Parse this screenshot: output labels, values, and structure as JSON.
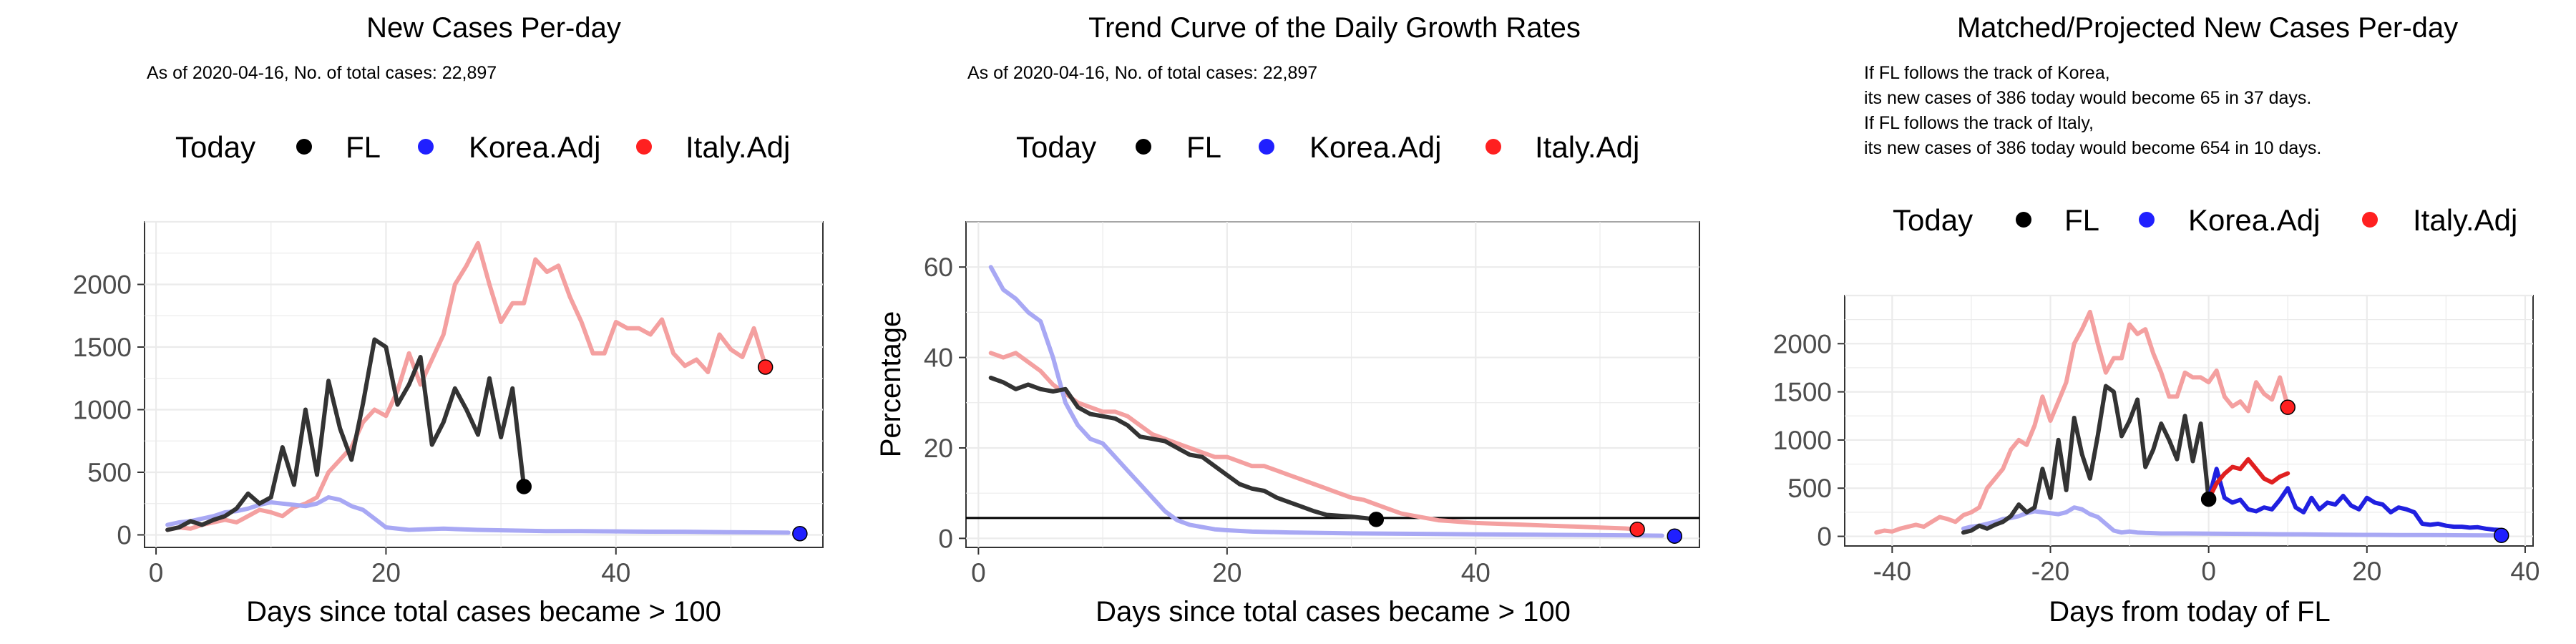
{
  "chart_data": [
    {
      "type": "line",
      "title": "New Cases Per-day",
      "subtitle": "As of 2020-04-16, No. of total cases: 22,897",
      "xlabel": "Days since total cases became > 100",
      "ylabel": "",
      "xlim": [
        -1,
        58
      ],
      "ylim": [
        -100,
        2500
      ],
      "xticks": [
        0,
        20,
        40
      ],
      "yticks": [
        0,
        500,
        1000,
        1500,
        2000
      ],
      "grid": true,
      "legend": {
        "position": "top",
        "title": "Today",
        "entries": [
          "FL",
          "Korea.Adj",
          "Italy.Adj"
        ]
      },
      "series": [
        {
          "name": "Italy.Adj",
          "color": "#f4a0a0",
          "x": [
            1,
            2,
            3,
            4,
            5,
            6,
            7,
            8,
            9,
            10,
            11,
            12,
            13,
            14,
            15,
            16,
            17,
            18,
            19,
            20,
            21,
            22,
            23,
            24,
            25,
            26,
            27,
            28,
            29,
            30,
            31,
            32,
            33,
            34,
            35,
            36,
            37,
            38,
            39,
            40,
            41,
            42,
            43,
            44,
            45,
            46,
            47,
            48,
            49,
            50,
            51,
            52,
            53
          ],
          "y": [
            40,
            60,
            50,
            80,
            100,
            120,
            100,
            150,
            200,
            180,
            150,
            220,
            250,
            300,
            500,
            600,
            700,
            900,
            1000,
            950,
            1150,
            1450,
            1200,
            1400,
            1600,
            2000,
            2150,
            2330,
            2000,
            1700,
            1850,
            1850,
            2200,
            2100,
            2150,
            1900,
            1700,
            1450,
            1450,
            1700,
            1650,
            1650,
            1600,
            1720,
            1450,
            1350,
            1400,
            1300,
            1600,
            1480,
            1420,
            1650,
            1350
          ]
        },
        {
          "name": "Korea.Adj",
          "color": "#a8a8f4",
          "x": [
            1,
            2,
            3,
            4,
            5,
            6,
            7,
            8,
            9,
            10,
            11,
            12,
            13,
            14,
            15,
            16,
            17,
            18,
            19,
            20,
            22,
            25,
            28,
            31,
            34,
            37,
            40,
            43,
            46,
            49,
            52,
            55
          ],
          "y": [
            80,
            100,
            110,
            130,
            150,
            180,
            190,
            210,
            240,
            260,
            250,
            240,
            230,
            250,
            300,
            280,
            230,
            200,
            130,
            60,
            40,
            50,
            40,
            35,
            30,
            30,
            28,
            26,
            25,
            22,
            20,
            18
          ]
        },
        {
          "name": "FL",
          "color": "#333333",
          "x": [
            1,
            2,
            3,
            4,
            5,
            6,
            7,
            8,
            9,
            10,
            11,
            12,
            13,
            14,
            15,
            16,
            17,
            18,
            19,
            20,
            21,
            22,
            23,
            24,
            25,
            26,
            27,
            28,
            29,
            30,
            31,
            32
          ],
          "y": [
            40,
            60,
            110,
            80,
            120,
            150,
            210,
            330,
            250,
            300,
            700,
            400,
            1000,
            480,
            1230,
            850,
            600,
            1050,
            1560,
            1500,
            1040,
            1200,
            1420,
            720,
            900,
            1170,
            1000,
            800,
            1250,
            780,
            1170,
            386
          ]
        }
      ],
      "today_points": [
        {
          "name": "FL",
          "x": 32,
          "y": 386,
          "color": "#000000"
        },
        {
          "name": "Italy.Adj",
          "x": 53,
          "y": 1340,
          "color": "#ff2020"
        },
        {
          "name": "Korea.Adj",
          "x": 56,
          "y": 10,
          "color": "#2020ff"
        }
      ]
    },
    {
      "type": "line",
      "title": "Trend Curve of the Daily Growth Rates",
      "subtitle": "As of 2020-04-16, No. of total cases: 22,897",
      "xlabel": "Days since total cases became > 100",
      "ylabel": "Percentage",
      "xlim": [
        -1,
        58
      ],
      "ylim": [
        -2,
        70
      ],
      "xticks": [
        0,
        20,
        40
      ],
      "yticks": [
        0,
        20,
        40,
        60
      ],
      "grid": true,
      "hline": 4.5,
      "legend": {
        "position": "top",
        "title": "Today",
        "entries": [
          "FL",
          "Korea.Adj",
          "Italy.Adj"
        ]
      },
      "series": [
        {
          "name": "Italy.Adj",
          "color": "#f4a0a0",
          "x": [
            1,
            2,
            3,
            4,
            5,
            6,
            7,
            8,
            9,
            10,
            11,
            12,
            13,
            14,
            15,
            16,
            17,
            18,
            19,
            20,
            21,
            22,
            23,
            24,
            25,
            26,
            27,
            28,
            29,
            30,
            31,
            32,
            33,
            34,
            35,
            36,
            37,
            38,
            39,
            40,
            42,
            44,
            46,
            48,
            50,
            52,
            53
          ],
          "y": [
            41,
            40,
            41,
            39,
            37,
            34,
            32,
            30,
            29,
            28,
            28,
            27,
            25,
            23,
            22,
            21,
            20,
            19,
            18,
            18,
            17,
            16,
            16,
            15,
            14,
            13,
            12,
            11,
            10,
            9,
            8.5,
            7.5,
            6.5,
            5.5,
            5,
            4.5,
            4,
            3.8,
            3.6,
            3.4,
            3.2,
            3,
            2.8,
            2.6,
            2.4,
            2.2,
            2
          ]
        },
        {
          "name": "Korea.Adj",
          "color": "#a8a8f4",
          "x": [
            1,
            2,
            3,
            4,
            5,
            6,
            7,
            8,
            9,
            10,
            11,
            12,
            13,
            14,
            15,
            16,
            17,
            18,
            19,
            20,
            22,
            25,
            30,
            35,
            40,
            45,
            50,
            55
          ],
          "y": [
            60,
            55,
            53,
            50,
            48,
            40,
            30,
            25,
            22,
            21,
            18,
            15,
            12,
            9,
            6,
            4,
            3,
            2.5,
            2,
            1.8,
            1.5,
            1.3,
            1.1,
            1,
            0.9,
            0.8,
            0.7,
            0.6
          ]
        },
        {
          "name": "FL",
          "color": "#333333",
          "x": [
            1,
            2,
            3,
            4,
            5,
            6,
            7,
            8,
            9,
            10,
            11,
            12,
            13,
            14,
            15,
            16,
            17,
            18,
            19,
            20,
            21,
            22,
            23,
            24,
            25,
            26,
            27,
            28,
            29,
            30,
            31,
            32
          ],
          "y": [
            35.5,
            34.5,
            33,
            34,
            33,
            32.5,
            33,
            29,
            27.5,
            27,
            26.5,
            25,
            22.5,
            22,
            21.5,
            20,
            18.5,
            18,
            16,
            14,
            12,
            11,
            10.5,
            9,
            8,
            7,
            6,
            5.2,
            5,
            4.8,
            4.5,
            4.2
          ]
        }
      ],
      "today_points": [
        {
          "name": "FL",
          "x": 32,
          "y": 4.2,
          "color": "#000000"
        },
        {
          "name": "Italy.Adj",
          "x": 53,
          "y": 2,
          "color": "#ff2020"
        },
        {
          "name": "Korea.Adj",
          "x": 56,
          "y": 0.5,
          "color": "#2020ff"
        }
      ]
    },
    {
      "type": "line",
      "title": "Matched/Projected New Cases Per-day",
      "annotations": [
        "If FL follows the track of Korea,",
        "its new cases of 386 today would become 65 in 37 days.",
        "If FL follows the track of Italy,",
        "its new cases of 386 today would become 654 in 10 days."
      ],
      "xlabel": "Days from today of FL",
      "ylabel": "",
      "xlim": [
        -46,
        41
      ],
      "ylim": [
        -100,
        2500
      ],
      "xticks": [
        -40,
        -20,
        0,
        20,
        40
      ],
      "yticks": [
        0,
        500,
        1000,
        1500,
        2000
      ],
      "grid": true,
      "legend": {
        "position": "top",
        "title": "Today",
        "entries": [
          "FL",
          "Korea.Adj",
          "Italy.Adj"
        ]
      },
      "series": [
        {
          "name": "Italy.Adj",
          "color": "#f4a0a0",
          "x": [
            -42,
            -41,
            -40,
            -39,
            -38,
            -37,
            -36,
            -35,
            -34,
            -33,
            -32,
            -31,
            -30,
            -29,
            -28,
            -27,
            -26,
            -25,
            -24,
            -23,
            -22,
            -21,
            -20,
            -19,
            -18,
            -17,
            -16,
            -15,
            -14,
            -13,
            -12,
            -11,
            -10,
            -9,
            -8,
            -7,
            -6,
            -5,
            -4,
            -3,
            -2,
            -1,
            0,
            1,
            2,
            3,
            4,
            5,
            6,
            7,
            8,
            9,
            10
          ],
          "y": [
            40,
            60,
            50,
            80,
            100,
            120,
            100,
            150,
            200,
            180,
            150,
            220,
            250,
            300,
            500,
            600,
            700,
            900,
            1000,
            950,
            1150,
            1450,
            1200,
            1400,
            1600,
            2000,
            2150,
            2330,
            2000,
            1700,
            1850,
            1850,
            2200,
            2100,
            2150,
            1900,
            1700,
            1450,
            1450,
            1700,
            1650,
            1650,
            1600,
            1720,
            1450,
            1350,
            1400,
            1300,
            1600,
            1480,
            1420,
            1650,
            1350
          ]
        },
        {
          "name": "Korea.Adj",
          "color": "#a8a8f4",
          "x": [
            -31,
            -30,
            -29,
            -28,
            -27,
            -26,
            -25,
            -24,
            -23,
            -22,
            -21,
            -20,
            -19,
            -18,
            -17,
            -16,
            -15,
            -14,
            -13,
            -12,
            -11,
            -10,
            -9,
            -8,
            -6,
            -3,
            0,
            3,
            6,
            9,
            12,
            15,
            18,
            21,
            24,
            27,
            30,
            33,
            36
          ],
          "y": [
            80,
            100,
            110,
            130,
            150,
            180,
            190,
            210,
            240,
            260,
            250,
            240,
            230,
            250,
            300,
            280,
            230,
            200,
            130,
            60,
            40,
            50,
            40,
            35,
            30,
            30,
            28,
            26,
            25,
            22,
            20,
            18,
            16,
            15,
            14,
            13,
            12,
            11,
            10
          ]
        },
        {
          "name": "FL",
          "color": "#333333",
          "x": [
            -31,
            -30,
            -29,
            -28,
            -27,
            -26,
            -25,
            -24,
            -23,
            -22,
            -21,
            -20,
            -19,
            -18,
            -17,
            -16,
            -15,
            -14,
            -13,
            -12,
            -11,
            -10,
            -9,
            -8,
            -7,
            -6,
            -5,
            -4,
            -3,
            -2,
            -1,
            0
          ],
          "y": [
            40,
            60,
            110,
            80,
            120,
            150,
            210,
            330,
            250,
            300,
            700,
            400,
            1000,
            480,
            1230,
            850,
            600,
            1050,
            1560,
            1500,
            1040,
            1200,
            1420,
            720,
            900,
            1170,
            1000,
            800,
            1250,
            780,
            1170,
            386
          ]
        },
        {
          "name": "Korea.Adj projection",
          "color": "#2020e0",
          "x": [
            0,
            1,
            2,
            3,
            4,
            5,
            6,
            7,
            8,
            9,
            10,
            11,
            12,
            13,
            14,
            15,
            16,
            17,
            18,
            19,
            20,
            21,
            22,
            23,
            24,
            25,
            26,
            27,
            28,
            29,
            30,
            31,
            32,
            33,
            34,
            35,
            36,
            37
          ],
          "y": [
            386,
            700,
            400,
            350,
            380,
            280,
            260,
            300,
            280,
            380,
            500,
            300,
            250,
            400,
            280,
            350,
            330,
            420,
            320,
            280,
            400,
            350,
            330,
            250,
            300,
            280,
            250,
            130,
            120,
            130,
            110,
            100,
            100,
            90,
            95,
            80,
            70,
            65
          ]
        },
        {
          "name": "Italy.Adj projection",
          "color": "#e02020",
          "x": [
            0,
            1,
            2,
            3,
            4,
            5,
            6,
            7,
            8,
            9,
            10
          ],
          "y": [
            386,
            550,
            650,
            720,
            700,
            800,
            700,
            600,
            560,
            620,
            654
          ]
        }
      ],
      "today_points": [
        {
          "name": "FL",
          "x": 0,
          "y": 386,
          "color": "#000000"
        },
        {
          "name": "Italy.Adj",
          "x": 10,
          "y": 1340,
          "color": "#ff2020"
        },
        {
          "name": "Korea.Adj",
          "x": 37,
          "y": 10,
          "color": "#2020ff"
        }
      ]
    }
  ],
  "legend_colors": {
    "FL": "#000000",
    "Korea.Adj": "#2020ff",
    "Italy.Adj": "#ff2020"
  }
}
